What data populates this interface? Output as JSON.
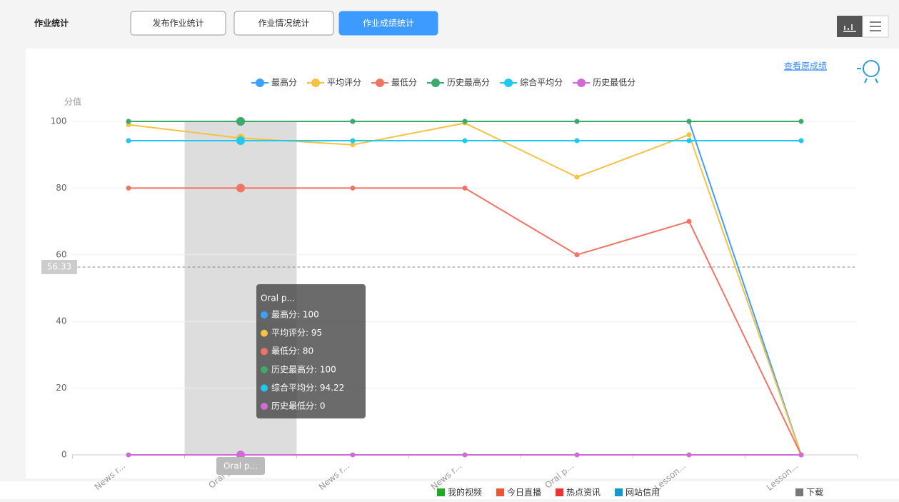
{
  "header": {
    "title": "作业统计",
    "tabs": [
      "发布作业统计",
      "作业情况统计",
      "作业成绩统计"
    ],
    "active_tab": 2
  },
  "link": "查看原成绩",
  "chart_data": {
    "type": "line",
    "y_axis_label": "分值",
    "categories": [
      "News r...",
      "Oral p...",
      "News r...",
      "News r...",
      "Oral p...",
      "Lesson...",
      "Lesson..."
    ],
    "series": [
      {
        "name": "最高分",
        "color": "#3ba0ff",
        "values": [
          100,
          100,
          100,
          100,
          100,
          100,
          0
        ]
      },
      {
        "name": "平均评分",
        "color": "#f5c242",
        "values": [
          99,
          95,
          93,
          99.5,
          83.3,
          96,
          0
        ]
      },
      {
        "name": "最低分",
        "color": "#f07464",
        "values": [
          80,
          80,
          80,
          80,
          60,
          70,
          0
        ]
      },
      {
        "name": "历史最高分",
        "color": "#3daa6a",
        "values": [
          100,
          100,
          100,
          100,
          100,
          100,
          100
        ]
      },
      {
        "name": "综合平均分",
        "color": "#1ec8ee",
        "values": [
          94.22,
          94.22,
          94.22,
          94.22,
          94.22,
          94.22,
          94.22
        ]
      },
      {
        "name": "历史最低分",
        "color": "#d06bd6",
        "values": [
          0,
          0,
          0,
          0,
          0,
          0,
          0
        ]
      }
    ],
    "ylim": [
      0,
      100
    ],
    "yticks": [
      0,
      20,
      40,
      60,
      80,
      100
    ],
    "grid": true,
    "legend": "top",
    "mark_line": {
      "value": 56.33
    },
    "tooltip": {
      "index": 1,
      "title": "Oral p...",
      "items": [
        "最高分: 100",
        "平均评分: 95",
        "最低分: 80",
        "历史最高分: 100",
        "综合平均分: 94.22",
        "历史最低分: 0"
      ]
    }
  },
  "footer": [
    "我的视频",
    "今日直播",
    "热点资讯",
    "网站信用",
    "下载"
  ]
}
